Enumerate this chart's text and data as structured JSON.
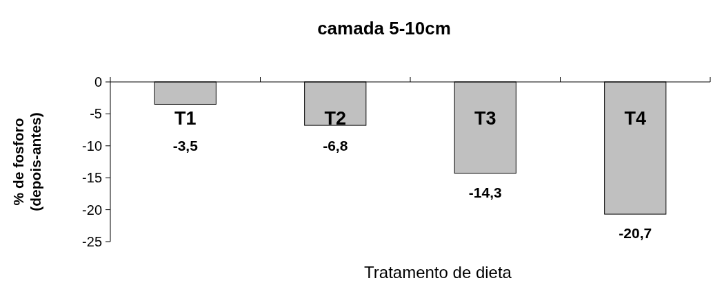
{
  "chart_data": {
    "type": "bar",
    "title": "camada 5-10cm",
    "xlabel": "Tratamento de dieta",
    "ylabel": "% de fosforo\n(depois-antes)",
    "categories": [
      "T1",
      "T2",
      "T3",
      "T4"
    ],
    "values": [
      -3.5,
      -6.8,
      -14.3,
      -20.7
    ],
    "value_labels": [
      "-3,5",
      "-6,8",
      "-14,3",
      "-20,7"
    ],
    "color": "#c0c0c0",
    "ylim": [
      -25,
      0
    ],
    "yticks": [
      -25,
      -20,
      -15,
      -10,
      -5,
      0
    ],
    "grid": false
  }
}
